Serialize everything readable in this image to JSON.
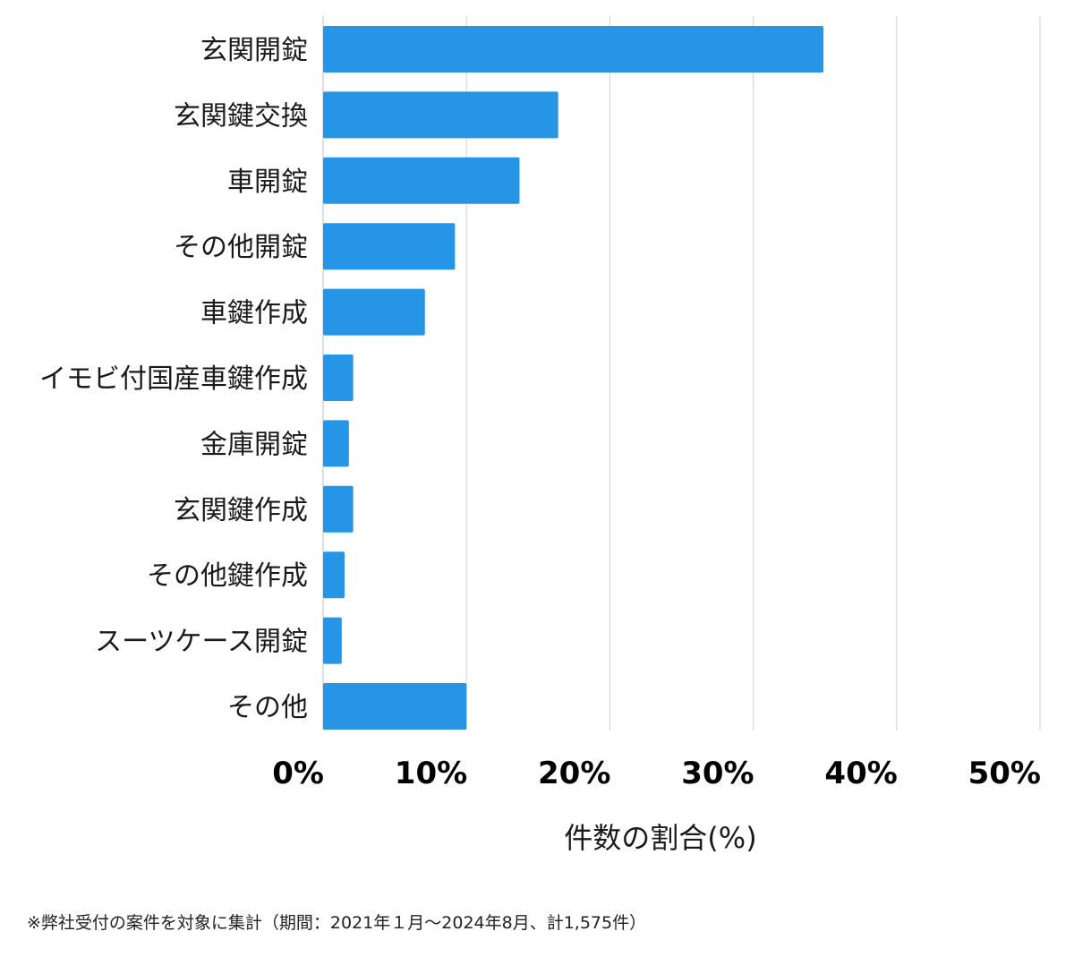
{
  "chart_data": {
    "type": "bar",
    "orientation": "horizontal",
    "categories": [
      "玄関開錠",
      "玄関鍵交換",
      "車開錠",
      "その他開錠",
      "車鍵作成",
      "イモビ付国産車鍵作成",
      "金庫開錠",
      "玄関鍵作成",
      "その他鍵作成",
      "スーツケース開錠",
      "その他"
    ],
    "values": [
      34.9,
      16.4,
      13.7,
      9.2,
      7.1,
      2.1,
      1.8,
      2.1,
      1.5,
      1.3,
      10.0
    ],
    "xlim": [
      0,
      50
    ],
    "xticks": [
      0,
      10,
      20,
      30,
      40,
      50
    ],
    "tick_labels": [
      "0%",
      "10%",
      "20%",
      "30%",
      "40%",
      "50%"
    ],
    "xlabel": "件数の割合(%)",
    "title": "",
    "grid": "vertical",
    "bar_color": "#2795e6",
    "grid_color": "#d0d0d0"
  },
  "footnote": "※弊社受付の案件を対象に集計（期間：2021年１月～2024年8月、計1,575件）"
}
